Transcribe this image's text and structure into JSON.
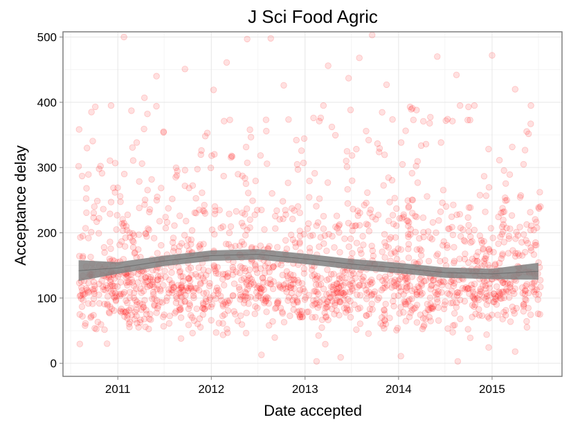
{
  "chart_data": {
    "type": "scatter",
    "title": "J Sci Food Agric",
    "xlabel": "Date accepted",
    "ylabel": "Acceptance delay",
    "x_ticks": [
      "2011",
      "2012",
      "2013",
      "2014",
      "2015"
    ],
    "y_ticks": [
      "0",
      "100",
      "200",
      "300",
      "400",
      "500"
    ],
    "xlim": [
      "2010-06-01",
      "2015-10-01"
    ],
    "ylim": [
      -20,
      508
    ],
    "grid": true,
    "legend": "none",
    "point_color": "#ff0000",
    "point_alpha": 0.12,
    "smooth_color": "#808080",
    "points": [
      {
        "x": "2010-09-20",
        "y": 385
      },
      {
        "x": "2010-10-20",
        "y": 298
      },
      {
        "x": "2010-08-01",
        "y": 302
      },
      {
        "x": "2011-01-25",
        "y": 500
      },
      {
        "x": "2011-06-01",
        "y": 440
      },
      {
        "x": "2011-09-20",
        "y": 451
      },
      {
        "x": "2012-03-01",
        "y": 461
      },
      {
        "x": "2012-05-20",
        "y": 497
      },
      {
        "x": "2012-08-20",
        "y": 498
      },
      {
        "x": "2013-04-01",
        "y": 456
      },
      {
        "x": "2013-08-01",
        "y": 468
      },
      {
        "x": "2013-09-20",
        "y": 503
      },
      {
        "x": "2014-06-01",
        "y": 470
      },
      {
        "x": "2015-01-01",
        "y": 472
      },
      {
        "x": "2014-08-15",
        "y": 442
      },
      {
        "x": "2015-04-01",
        "y": 420
      },
      {
        "x": "2015-06-01",
        "y": 367
      },
      {
        "x": "2014-10-01",
        "y": 393
      },
      {
        "x": "2013-11-15",
        "y": 427
      },
      {
        "x": "2012-01-10",
        "y": 419
      },
      {
        "x": "2011-04-15",
        "y": 407
      },
      {
        "x": "2012-10-10",
        "y": 426
      },
      {
        "x": "2013-06-20",
        "y": 437
      },
      {
        "x": "2014-02-15",
        "y": 393
      },
      {
        "x": "2013-02-15",
        "y": 3
      },
      {
        "x": "2014-01-10",
        "y": 11
      },
      {
        "x": "2014-08-20",
        "y": 3
      },
      {
        "x": "2015-04-01",
        "y": 18
      },
      {
        "x": "2013-05-20",
        "y": 9
      },
      {
        "x": "2012-07-15",
        "y": 13
      },
      {
        "x": "2010-11-20",
        "y": 30
      },
      {
        "x": "2011-09-05",
        "y": 38
      }
    ],
    "smooth": [
      {
        "x": "2010-08-01",
        "y": 142
      },
      {
        "x": "2011-01-01",
        "y": 146
      },
      {
        "x": "2011-07-01",
        "y": 157
      },
      {
        "x": "2012-01-01",
        "y": 165
      },
      {
        "x": "2012-07-01",
        "y": 167
      },
      {
        "x": "2013-01-01",
        "y": 160
      },
      {
        "x": "2013-07-01",
        "y": 152
      },
      {
        "x": "2014-01-01",
        "y": 146
      },
      {
        "x": "2014-07-01",
        "y": 139
      },
      {
        "x": "2015-01-01",
        "y": 137
      },
      {
        "x": "2015-07-01",
        "y": 141
      }
    ],
    "smooth_halfwidth": [
      16,
      9,
      8,
      8,
      8,
      8,
      8,
      8,
      8,
      8,
      13
    ]
  }
}
